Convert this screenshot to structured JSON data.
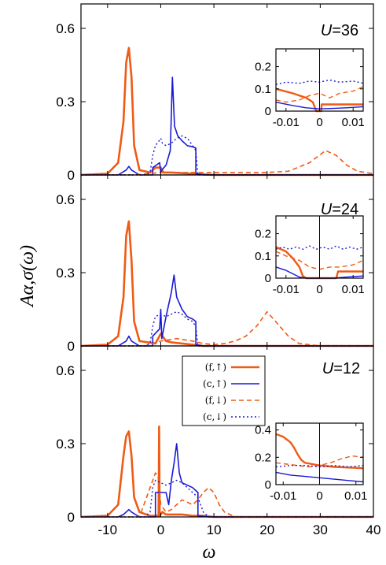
{
  "colors": {
    "f_up": "#f05a14",
    "c_up": "#1a1ad4",
    "f_down": "#f05a14",
    "c_down": "#1a1ad4",
    "axes": "#000000"
  },
  "figure": {
    "ylabel": "Aα,σ(ω)",
    "xlabel": "ω"
  },
  "chart_data": [
    {
      "type": "line",
      "annotation": "U=36",
      "xlim": [
        -15,
        40
      ],
      "ylim": [
        0,
        0.7
      ],
      "xticks": [],
      "yticks": [
        0,
        0.3,
        0.6
      ],
      "ytick_labels": [
        "0",
        "0.3",
        "0.6"
      ],
      "series": [
        {
          "key": "f_up",
          "style": "solid",
          "width": 2.6,
          "x": [
            -15,
            -10,
            -8,
            -7,
            -6.5,
            -6,
            -5.5,
            -5,
            -4,
            -2,
            -1,
            0,
            0.5,
            2,
            6,
            10,
            40
          ],
          "y": [
            0,
            0.005,
            0.05,
            0.22,
            0.46,
            0.52,
            0.4,
            0.12,
            0.02,
            0.01,
            0.03,
            0.03,
            0.01,
            0.01,
            0.005,
            0,
            0
          ]
        },
        {
          "key": "c_up",
          "style": "solid",
          "width": 1.6,
          "x": [
            -15,
            -8,
            -6.5,
            -6,
            -5.5,
            -4,
            -1.5,
            -1.5,
            -0.2,
            0,
            0.2,
            1,
            1.8,
            2.2,
            2.6,
            3.2,
            4,
            5,
            6,
            6.6,
            6.6,
            8,
            40
          ],
          "y": [
            0,
            0,
            0.02,
            0.035,
            0.02,
            0,
            0,
            0.03,
            0.05,
            0.01,
            0.02,
            0.04,
            0.1,
            0.4,
            0.2,
            0.16,
            0.14,
            0.12,
            0.115,
            0.11,
            0.005,
            0,
            0
          ]
        },
        {
          "key": "f_down",
          "style": "dash",
          "width": 1.6,
          "x": [
            -15,
            -5,
            0,
            4,
            8,
            12,
            16,
            20,
            24,
            28,
            31,
            33,
            35,
            37,
            40
          ],
          "y": [
            0,
            0,
            0.01,
            0.01,
            0.01,
            0.01,
            0.01,
            0.01,
            0.015,
            0.05,
            0.1,
            0.08,
            0.04,
            0.015,
            0.005
          ]
        },
        {
          "key": "c_down",
          "style": "dot",
          "width": 1.4,
          "x": [
            -15,
            -3,
            -2,
            -1.5,
            -1,
            -0.3,
            0,
            0.3,
            1,
            2,
            3,
            4,
            5,
            6,
            6.6,
            7,
            40
          ],
          "y": [
            0,
            0,
            0.01,
            0.08,
            0.12,
            0.14,
            0.15,
            0.13,
            0.12,
            0.13,
            0.15,
            0.16,
            0.15,
            0.12,
            0.1,
            0,
            0
          ]
        }
      ],
      "inset": {
        "xlim": [
          -0.013,
          0.013
        ],
        "ylim": [
          0,
          0.28
        ],
        "xticks": [
          -0.01,
          0,
          0.01
        ],
        "xtick_labels": [
          "-0.01",
          "0",
          "0.01"
        ],
        "yticks": [
          0,
          0.1,
          0.2
        ],
        "ytick_labels": [
          "0",
          "0.1",
          "0.2"
        ],
        "vline": 0,
        "series": [
          {
            "key": "f_up",
            "style": "solid",
            "width": 2.4,
            "x": [
              -0.013,
              -0.008,
              -0.004,
              -0.002,
              -0.001,
              0.0005,
              0.0006,
              0.003,
              0.008,
              0.013
            ],
            "y": [
              0.1,
              0.08,
              0.06,
              0.04,
              0.0,
              0.0,
              0.03,
              0.03,
              0.03,
              0.03
            ]
          },
          {
            "key": "c_up",
            "style": "solid",
            "width": 1.4,
            "x": [
              -0.013,
              -0.008,
              -0.004,
              0,
              0.004,
              0.008,
              0.013
            ],
            "y": [
              0.04,
              0.025,
              0.015,
              0.01,
              0.012,
              0.015,
              0.02
            ]
          },
          {
            "key": "f_down",
            "style": "dash",
            "width": 1.4,
            "x": [
              -0.013,
              -0.01,
              -0.006,
              -0.003,
              0,
              0.003,
              0.006,
              0.01,
              0.013
            ],
            "y": [
              0.05,
              0.04,
              0.05,
              0.07,
              0.08,
              0.06,
              0.08,
              0.09,
              0.11
            ]
          },
          {
            "key": "c_down",
            "style": "dot",
            "width": 1.4,
            "x": [
              -0.013,
              -0.01,
              -0.006,
              -0.003,
              0,
              0.003,
              0.006,
              0.01,
              0.013
            ],
            "y": [
              0.12,
              0.13,
              0.125,
              0.135,
              0.13,
              0.14,
              0.13,
              0.135,
              0.125
            ]
          }
        ]
      }
    },
    {
      "type": "line",
      "annotation": "U=24",
      "xlim": [
        -15,
        40
      ],
      "ylim": [
        0,
        0.7
      ],
      "xticks": [],
      "yticks": [
        0,
        0.3,
        0.6
      ],
      "ytick_labels": [
        "0",
        "0.3",
        "0.6"
      ],
      "series": [
        {
          "key": "f_up",
          "style": "solid",
          "width": 2.6,
          "x": [
            -15,
            -10,
            -8,
            -7,
            -6.5,
            -6,
            -5.5,
            -5,
            -4,
            -1,
            0,
            1,
            2,
            4,
            6,
            8,
            40
          ],
          "y": [
            0,
            0.005,
            0.04,
            0.2,
            0.45,
            0.51,
            0.35,
            0.1,
            0.02,
            0.01,
            0.05,
            0.02,
            0.015,
            0.01,
            0.005,
            0,
            0
          ]
        },
        {
          "key": "c_up",
          "style": "solid",
          "width": 1.6,
          "x": [
            -15,
            -8,
            -6.5,
            -6,
            -5.5,
            -4,
            -1.5,
            -1.5,
            -0.2,
            0,
            0.2,
            1,
            2,
            2.5,
            3,
            4,
            5,
            6,
            6.6,
            6.6,
            8,
            40
          ],
          "y": [
            0,
            0,
            0.02,
            0.04,
            0.02,
            0,
            0,
            0.04,
            0.07,
            0.15,
            0.03,
            0.12,
            0.22,
            0.29,
            0.2,
            0.15,
            0.12,
            0.11,
            0.1,
            0.005,
            0,
            0
          ]
        },
        {
          "key": "f_down",
          "style": "dash",
          "width": 1.6,
          "x": [
            -15,
            -3,
            0,
            3,
            6,
            8,
            10,
            12,
            14,
            16,
            18,
            20,
            22,
            24,
            26,
            30,
            40
          ],
          "y": [
            0,
            0,
            0.02,
            0.03,
            0.02,
            0.01,
            0.005,
            0.01,
            0.02,
            0.04,
            0.08,
            0.14,
            0.09,
            0.04,
            0.01,
            0,
            0
          ]
        },
        {
          "key": "c_down",
          "style": "dot",
          "width": 1.4,
          "x": [
            -15,
            -3,
            -2,
            -1.5,
            -1,
            0,
            1,
            2,
            3,
            4,
            5,
            6,
            6.6,
            7,
            40
          ],
          "y": [
            0,
            0,
            0.01,
            0.08,
            0.12,
            0.13,
            0.12,
            0.13,
            0.14,
            0.13,
            0.11,
            0.1,
            0.08,
            0,
            0
          ]
        }
      ],
      "inset": {
        "xlim": [
          -0.013,
          0.013
        ],
        "ylim": [
          0,
          0.28
        ],
        "xticks": [
          -0.01,
          0,
          0.01
        ],
        "xtick_labels": [
          "-0.01",
          "0",
          "0.01"
        ],
        "yticks": [
          0,
          0.1,
          0.2
        ],
        "ytick_labels": [
          "0",
          "0.1",
          "0.2"
        ],
        "vline": 0,
        "series": [
          {
            "key": "f_up",
            "style": "solid",
            "width": 2.4,
            "x": [
              -0.013,
              -0.01,
              -0.008,
              -0.006,
              -0.005,
              -0.004,
              0,
              0.005,
              0.0055,
              0.008,
              0.013
            ],
            "y": [
              0.14,
              0.12,
              0.09,
              0.05,
              0.01,
              0,
              0,
              0,
              0.03,
              0.03,
              0.03
            ]
          },
          {
            "key": "c_up",
            "style": "solid",
            "width": 1.4,
            "x": [
              -0.013,
              -0.01,
              -0.008,
              -0.006,
              -0.004,
              0,
              0.004,
              0.008,
              0.013
            ],
            "y": [
              0.05,
              0.035,
              0.02,
              0.005,
              0,
              0,
              0,
              0.005,
              0.01
            ]
          },
          {
            "key": "f_down",
            "style": "dash",
            "width": 1.4,
            "x": [
              -0.013,
              -0.01,
              -0.006,
              -0.003,
              0,
              0.003,
              0.006,
              0.01,
              0.013
            ],
            "y": [
              0.12,
              0.1,
              0.08,
              0.05,
              0.04,
              0.05,
              0.05,
              0.06,
              0.08
            ]
          },
          {
            "key": "c_down",
            "style": "dot",
            "width": 1.4,
            "x": [
              -0.013,
              -0.011,
              -0.009,
              -0.007,
              -0.005,
              -0.003,
              -0.001,
              0.001,
              0.003,
              0.005,
              0.007,
              0.009,
              0.011,
              0.013
            ],
            "y": [
              0.13,
              0.14,
              0.13,
              0.14,
              0.13,
              0.145,
              0.13,
              0.14,
              0.13,
              0.145,
              0.13,
              0.14,
              0.13,
              0.14
            ]
          }
        ]
      }
    },
    {
      "type": "line",
      "annotation": "U=12",
      "xlim": [
        -15,
        40
      ],
      "ylim": [
        0,
        0.7
      ],
      "xticks": [
        -10,
        0,
        10,
        20,
        30,
        40
      ],
      "xtick_labels": [
        "-10",
        "0",
        "10",
        "20",
        "30",
        "40"
      ],
      "yticks": [
        0,
        0.3,
        0.6
      ],
      "ytick_labels": [
        "0",
        "0.3",
        "0.6"
      ],
      "legend": {
        "location": "top-middle",
        "entries": [
          {
            "key": "f_up",
            "label": "(f,↑)"
          },
          {
            "key": "c_up",
            "label": "(c,↑)"
          },
          {
            "key": "f_down",
            "label": "(f,↓)"
          },
          {
            "key": "c_down",
            "label": "(c,↓)"
          }
        ]
      },
      "series": [
        {
          "key": "f_up",
          "style": "solid",
          "width": 2.6,
          "x": [
            -15,
            -10,
            -8,
            -7,
            -6.5,
            -6,
            -5.5,
            -5,
            -4,
            -2,
            -0.4,
            -0.3,
            -0.2,
            0.3,
            1,
            2,
            4,
            6,
            8,
            10,
            15,
            40
          ],
          "y": [
            0,
            0.005,
            0.05,
            0.25,
            0.33,
            0.35,
            0.25,
            0.08,
            0.02,
            0.005,
            0.005,
            0.37,
            0.005,
            0.02,
            0.01,
            0.01,
            0.01,
            0.005,
            0.005,
            0,
            0,
            0
          ]
        },
        {
          "key": "c_up",
          "style": "solid",
          "width": 1.6,
          "x": [
            -15,
            -8,
            -7,
            -6.5,
            -6,
            -5.5,
            -4,
            -1,
            -1,
            0,
            1,
            1.5,
            2,
            2.5,
            3,
            3.5,
            4,
            5,
            6,
            7,
            7,
            9,
            40
          ],
          "y": [
            0,
            0,
            0.01,
            0.02,
            0.03,
            0.02,
            0,
            0,
            0.1,
            0.1,
            0.1,
            0.05,
            0.15,
            0.22,
            0.3,
            0.18,
            0.14,
            0.13,
            0.12,
            0.1,
            0.005,
            0,
            0
          ]
        },
        {
          "key": "f_down",
          "style": "dash",
          "width": 1.6,
          "x": [
            -15,
            -4,
            -1,
            -0.5,
            0,
            1,
            2,
            3,
            4,
            5,
            6,
            7,
            8,
            9,
            10,
            11,
            12,
            14,
            40
          ],
          "y": [
            0,
            0,
            0.18,
            0.17,
            0.05,
            0.02,
            0.03,
            0.05,
            0.07,
            0.06,
            0.05,
            0.07,
            0.1,
            0.12,
            0.1,
            0.05,
            0.02,
            0,
            0
          ]
        },
        {
          "key": "c_down",
          "style": "dot",
          "width": 1.4,
          "x": [
            -15,
            -3,
            -2,
            -1.5,
            -1,
            0,
            1,
            2,
            3,
            4,
            5,
            6,
            7,
            8,
            9,
            40
          ],
          "y": [
            0,
            0,
            0.02,
            0.12,
            0.15,
            0.14,
            0.13,
            0.14,
            0.15,
            0.14,
            0.12,
            0.1,
            0.08,
            0.02,
            0,
            0
          ]
        }
      ],
      "inset": {
        "xlim": [
          -0.012,
          0.012
        ],
        "ylim": [
          0,
          0.45
        ],
        "xticks": [
          -0.01,
          0,
          0.01
        ],
        "xtick_labels": [
          "-0.01",
          "0",
          "0.01"
        ],
        "yticks": [
          0,
          0.2,
          0.4
        ],
        "ytick_labels": [
          "0",
          "0.2",
          "0.4"
        ],
        "vline": 0,
        "series": [
          {
            "key": "f_up",
            "style": "solid",
            "width": 2.4,
            "x": [
              -0.012,
              -0.01,
              -0.008,
              -0.007,
              -0.006,
              -0.005,
              -0.004,
              -0.002,
              0,
              0.004,
              0.008,
              0.012
            ],
            "y": [
              0.37,
              0.35,
              0.31,
              0.27,
              0.22,
              0.18,
              0.16,
              0.15,
              0.14,
              0.13,
              0.125,
              0.12
            ]
          },
          {
            "key": "c_up",
            "style": "solid",
            "width": 1.4,
            "x": [
              -0.012,
              -0.008,
              -0.004,
              0,
              0.004,
              0.008,
              0.012
            ],
            "y": [
              0.09,
              0.07,
              0.06,
              0.05,
              0.04,
              0.03,
              0.02
            ]
          },
          {
            "key": "f_down",
            "style": "dash",
            "width": 1.4,
            "x": [
              -0.012,
              -0.009,
              -0.006,
              -0.003,
              0,
              0.003,
              0.006,
              0.009,
              0.012
            ],
            "y": [
              0.16,
              0.15,
              0.14,
              0.13,
              0.14,
              0.16,
              0.19,
              0.21,
              0.2
            ]
          },
          {
            "key": "c_down",
            "style": "dot",
            "width": 1.4,
            "x": [
              -0.012,
              -0.008,
              -0.004,
              0,
              0.004,
              0.008,
              0.012
            ],
            "y": [
              0.13,
              0.14,
              0.14,
              0.13,
              0.14,
              0.13,
              0.14
            ]
          }
        ]
      }
    }
  ]
}
